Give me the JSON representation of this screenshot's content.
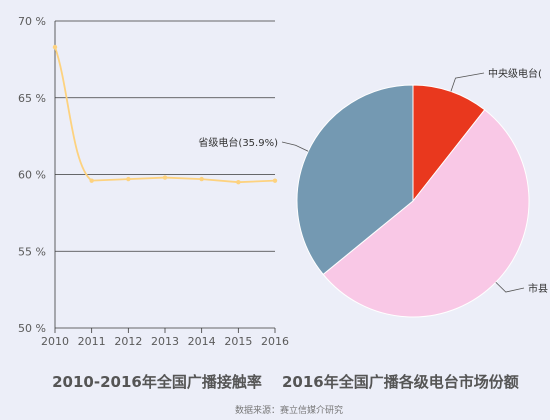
{
  "chart_data": [
    {
      "type": "line",
      "title": "2010-2016年全国广播接触率",
      "x": [
        "2010",
        "2011",
        "2012",
        "2013",
        "2014",
        "2015",
        "2016"
      ],
      "series": [
        {
          "values": [
            68.3,
            59.6,
            59.7,
            59.8,
            59.7,
            59.5,
            59.6
          ],
          "color": "#fdd27f"
        }
      ],
      "ylim": [
        50,
        70
      ],
      "yticks": [
        50,
        55,
        60,
        65,
        70
      ],
      "ytick_labels": [
        "50 %",
        "55 %",
        "60 %",
        "65 %",
        "70 %"
      ],
      "grid": true
    },
    {
      "type": "pie",
      "title": "2016年全国广播各级电台市场份额",
      "slices": [
        {
          "label": "中央级电台",
          "value": 10.6,
          "color": "#e9381e",
          "callout": "中央级电台("
        },
        {
          "label": "市县",
          "value": 53.5,
          "color": "#f9c8e6",
          "callout": "市县"
        },
        {
          "label": "省级电台",
          "value": 35.9,
          "color": "#7499b2",
          "callout": "省级电台(35.9%)"
        }
      ]
    }
  ],
  "source_note": "数据来源：赛立信媒介研究"
}
